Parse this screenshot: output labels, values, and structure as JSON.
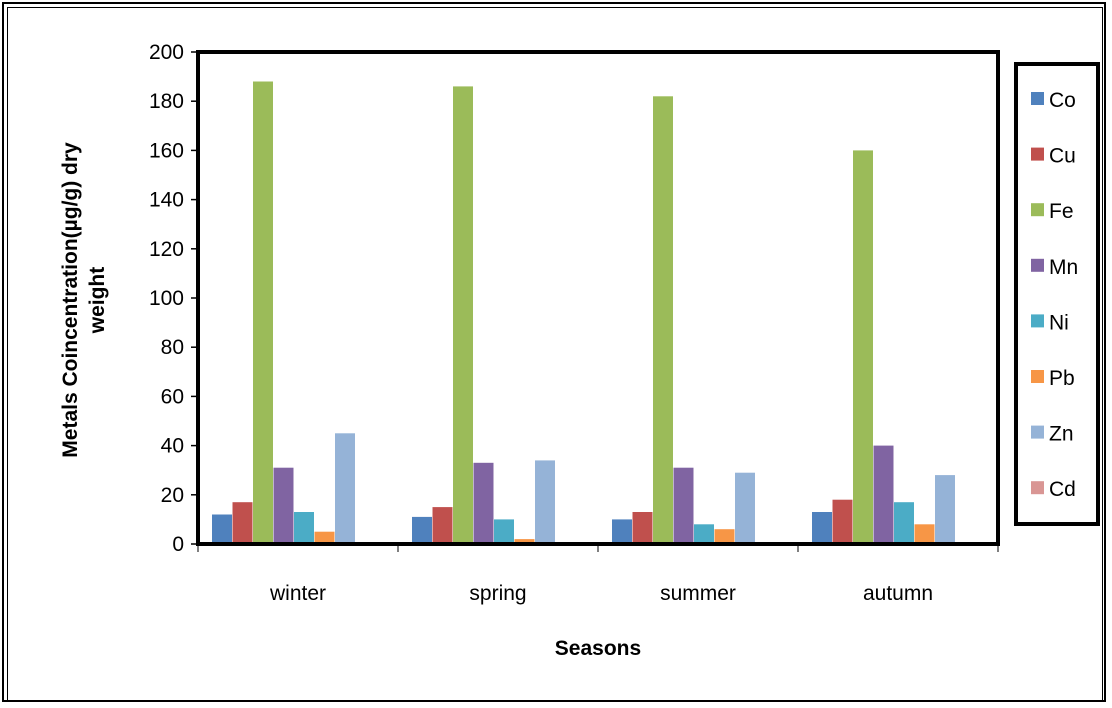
{
  "chart_data": {
    "type": "bar",
    "title": "",
    "xlabel": "Seasons",
    "ylabel_lines": [
      "Metals Coincentration(µg/g) dry",
      "weight"
    ],
    "categories": [
      "winter",
      "spring",
      "summer",
      "autumn"
    ],
    "ylim": [
      0,
      200
    ],
    "yticks": [
      0,
      20,
      40,
      60,
      80,
      100,
      120,
      140,
      160,
      180,
      200
    ],
    "grid": false,
    "legend_position": "right",
    "series": [
      {
        "name": "Co",
        "color": "#4F81BD",
        "values": [
          12,
          11,
          10,
          13
        ]
      },
      {
        "name": "Cu",
        "color": "#C0504D",
        "values": [
          17,
          15,
          13,
          18
        ]
      },
      {
        "name": "Fe",
        "color": "#9BBB59",
        "values": [
          188,
          186,
          182,
          160
        ]
      },
      {
        "name": "Mn",
        "color": "#8064A2",
        "values": [
          31,
          33,
          31,
          40
        ]
      },
      {
        "name": "Ni",
        "color": "#4BACC6",
        "values": [
          13,
          10,
          8,
          17
        ]
      },
      {
        "name": "Pb",
        "color": "#F79646",
        "values": [
          5,
          2,
          6,
          8
        ]
      },
      {
        "name": "Zn",
        "color": "#95B3D7",
        "values": [
          45,
          34,
          29,
          28
        ]
      },
      {
        "name": "Cd",
        "color": "#D99694",
        "values": [
          0,
          0,
          0,
          0
        ]
      }
    ]
  }
}
